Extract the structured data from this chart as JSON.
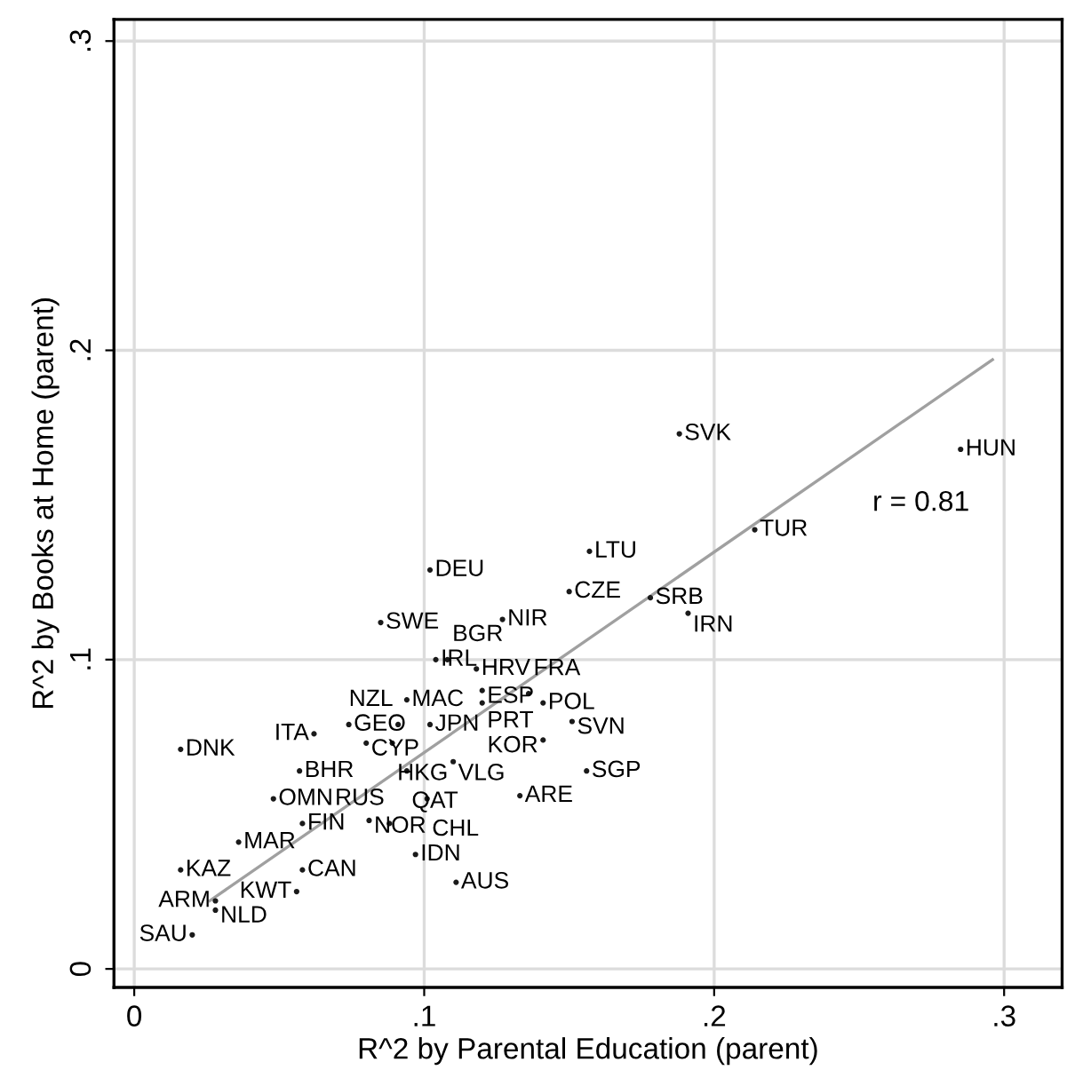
{
  "chart_data": {
    "type": "scatter",
    "xlabel": "R^2 by Parental Education (parent)",
    "ylabel": "R^2 by Books at Home (parent)",
    "xlim": [
      -0.007,
      0.32
    ],
    "ylim": [
      -0.006,
      0.307
    ],
    "xticks": [
      0,
      {
        "value": 0.1,
        "label": ".1"
      },
      {
        "value": 0.2,
        "label": ".2"
      },
      {
        "value": 0.3,
        "label": ".3"
      }
    ],
    "yticks": [
      0,
      {
        "value": 0.1,
        "label": ".1"
      },
      {
        "value": 0.2,
        "label": ".2"
      },
      {
        "value": 0.3,
        "label": ".3"
      }
    ],
    "grid": true,
    "legend": false,
    "series": [
      {
        "type": "scatter",
        "marker": "circle",
        "color": "#1a1a1a",
        "x": [
          0.285,
          0.188,
          0.214,
          0.157,
          0.102,
          0.15,
          0.178,
          0.191,
          0.085,
          0.127,
          0.104,
          0.108,
          0.118,
          0.094,
          0.12,
          0.12,
          0.136,
          0.141,
          0.151,
          0.074,
          0.091,
          0.102,
          0.062,
          0.08,
          0.089,
          0.141,
          0.016,
          0.094,
          0.11,
          0.156,
          0.057,
          0.133,
          0.101,
          0.048,
          0.058,
          0.081,
          0.088,
          0.036,
          0.097,
          0.016,
          0.058,
          0.111,
          0.056,
          0.028,
          0.028,
          0.02
        ],
        "values": [
          0.168,
          0.173,
          0.142,
          0.135,
          0.129,
          0.122,
          0.12,
          0.115,
          0.112,
          0.113,
          0.1,
          0.1,
          0.097,
          0.087,
          0.09,
          0.086,
          0.089,
          0.086,
          0.08,
          0.079,
          0.079,
          0.079,
          0.076,
          0.073,
          0.073,
          0.074,
          0.071,
          0.064,
          0.067,
          0.064,
          0.064,
          0.056,
          0.055,
          0.055,
          0.047,
          0.048,
          0.047,
          0.041,
          0.037,
          0.032,
          0.032,
          0.028,
          0.025,
          0.022,
          0.019,
          0.011
        ],
        "value_labels": [
          "HUN",
          "SVK",
          "TUR",
          "LTU",
          "DEU",
          "CZE",
          "SRB",
          "IRN",
          "SWE",
          "NIR",
          "IRL",
          "BGR",
          "HRV",
          "MAC",
          "ESP",
          "PRT",
          "FRA",
          "POL",
          "SVN",
          "GEO",
          "NZL",
          "JPN",
          "ITA",
          "CYP",
          "HKG",
          "KOR",
          "DNK",
          "QAT",
          "VLG",
          "SGP",
          "BHR",
          "ARE",
          "CHL",
          "OMN",
          "FIN",
          "NOR",
          "RUS",
          "MAR",
          "IDN",
          "KAZ",
          "CAN",
          "AUS",
          "KWT",
          "ARM",
          "NLD",
          "SAU"
        ]
      },
      {
        "type": "line",
        "color": "#a0a0a0",
        "x": [
          0.026,
          0.296
        ],
        "values": [
          0.022,
          0.197
        ]
      }
    ],
    "annotations": [
      "r = 0.81"
    ]
  }
}
